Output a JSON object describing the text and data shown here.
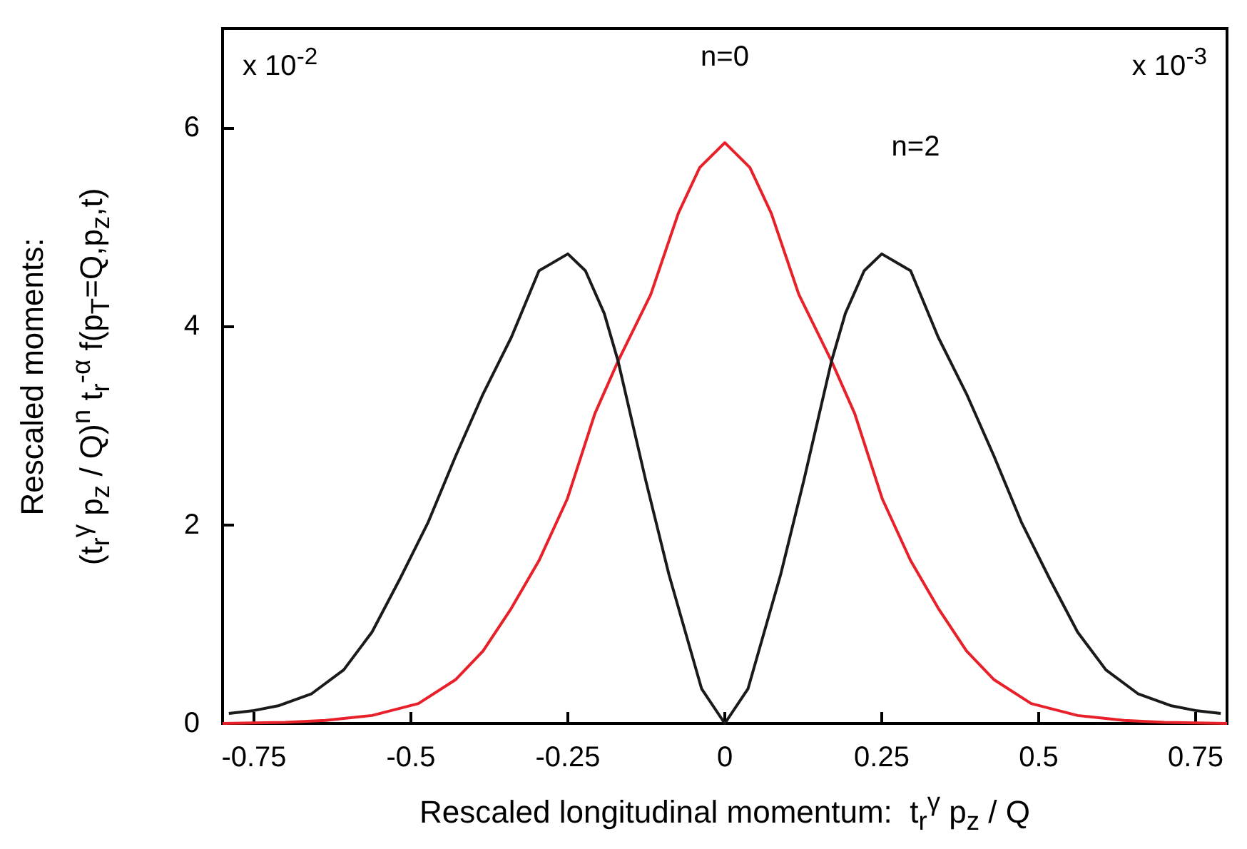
{
  "chart_data": {
    "type": "line",
    "xlabel": "Rescaled longitudinal momentum:  t$_{r}$$^{γ}$ p$_{z}$ / Q",
    "ylabel": "Rescaled moments:\n(t$_{r}$$^{γ}$ p$_{z}$ / Q)$^{n}$ t$_{r}$$^{-α}$ f(p$_{T}$=Q,p$_{z}$,t)",
    "xlim": [
      -0.8,
      0.8
    ],
    "xticks": [
      -0.75,
      -0.5,
      -0.25,
      0,
      0.25,
      0.5,
      0.75
    ],
    "ylim": [
      0,
      7
    ],
    "yticks": [
      0,
      2,
      4,
      6
    ],
    "grid": false,
    "marker": "none",
    "line_style": "solid",
    "series": [
      {
        "color": "#e8202a",
        "x": [
          -0.8,
          -0.7,
          -0.636,
          -0.562,
          -0.488,
          -0.429,
          -0.385,
          -0.34,
          -0.296,
          -0.251,
          -0.207,
          -0.17,
          -0.118,
          -0.074,
          -0.04,
          0,
          0.04,
          0.074,
          0.118,
          0.17,
          0.207,
          0.251,
          0.296,
          0.34,
          0.385,
          0.429,
          0.488,
          0.562,
          0.636,
          0.7,
          0.8
        ],
        "values": [
          0,
          0.01,
          0.03,
          0.08,
          0.2,
          0.44,
          0.73,
          1.16,
          1.64,
          2.26,
          3.12,
          3.65,
          4.32,
          5.14,
          5.6,
          5.85,
          5.6,
          5.14,
          4.32,
          3.65,
          3.12,
          2.26,
          1.64,
          1.16,
          0.73,
          0.44,
          0.2,
          0.08,
          0.03,
          0.01,
          0
        ]
      },
      {
        "color": "#1a1a1a",
        "x": [
          -0.79,
          -0.75,
          -0.71,
          -0.658,
          -0.607,
          -0.562,
          -0.518,
          -0.473,
          -0.429,
          -0.385,
          -0.34,
          -0.296,
          -0.25,
          -0.222,
          -0.192,
          -0.17,
          -0.126,
          -0.089,
          -0.037,
          0,
          0.037,
          0.089,
          0.126,
          0.17,
          0.192,
          0.222,
          0.25,
          0.296,
          0.34,
          0.385,
          0.429,
          0.473,
          0.518,
          0.562,
          0.607,
          0.658,
          0.71,
          0.75,
          0.79
        ],
        "values": [
          0.1,
          0.13,
          0.18,
          0.3,
          0.54,
          0.92,
          1.45,
          2.02,
          2.69,
          3.32,
          3.89,
          4.56,
          4.73,
          4.56,
          4.13,
          3.65,
          2.45,
          1.5,
          0.35,
          0,
          0.35,
          1.5,
          2.45,
          3.65,
          4.13,
          4.56,
          4.73,
          4.56,
          3.89,
          3.32,
          2.69,
          2.02,
          1.45,
          0.92,
          0.54,
          0.3,
          0.18,
          0.13,
          0.1
        ]
      }
    ],
    "annotations": [
      "x 10$^{-2}$",
      "x 10$^{-3}$",
      "n=0",
      "n=2"
    ]
  }
}
